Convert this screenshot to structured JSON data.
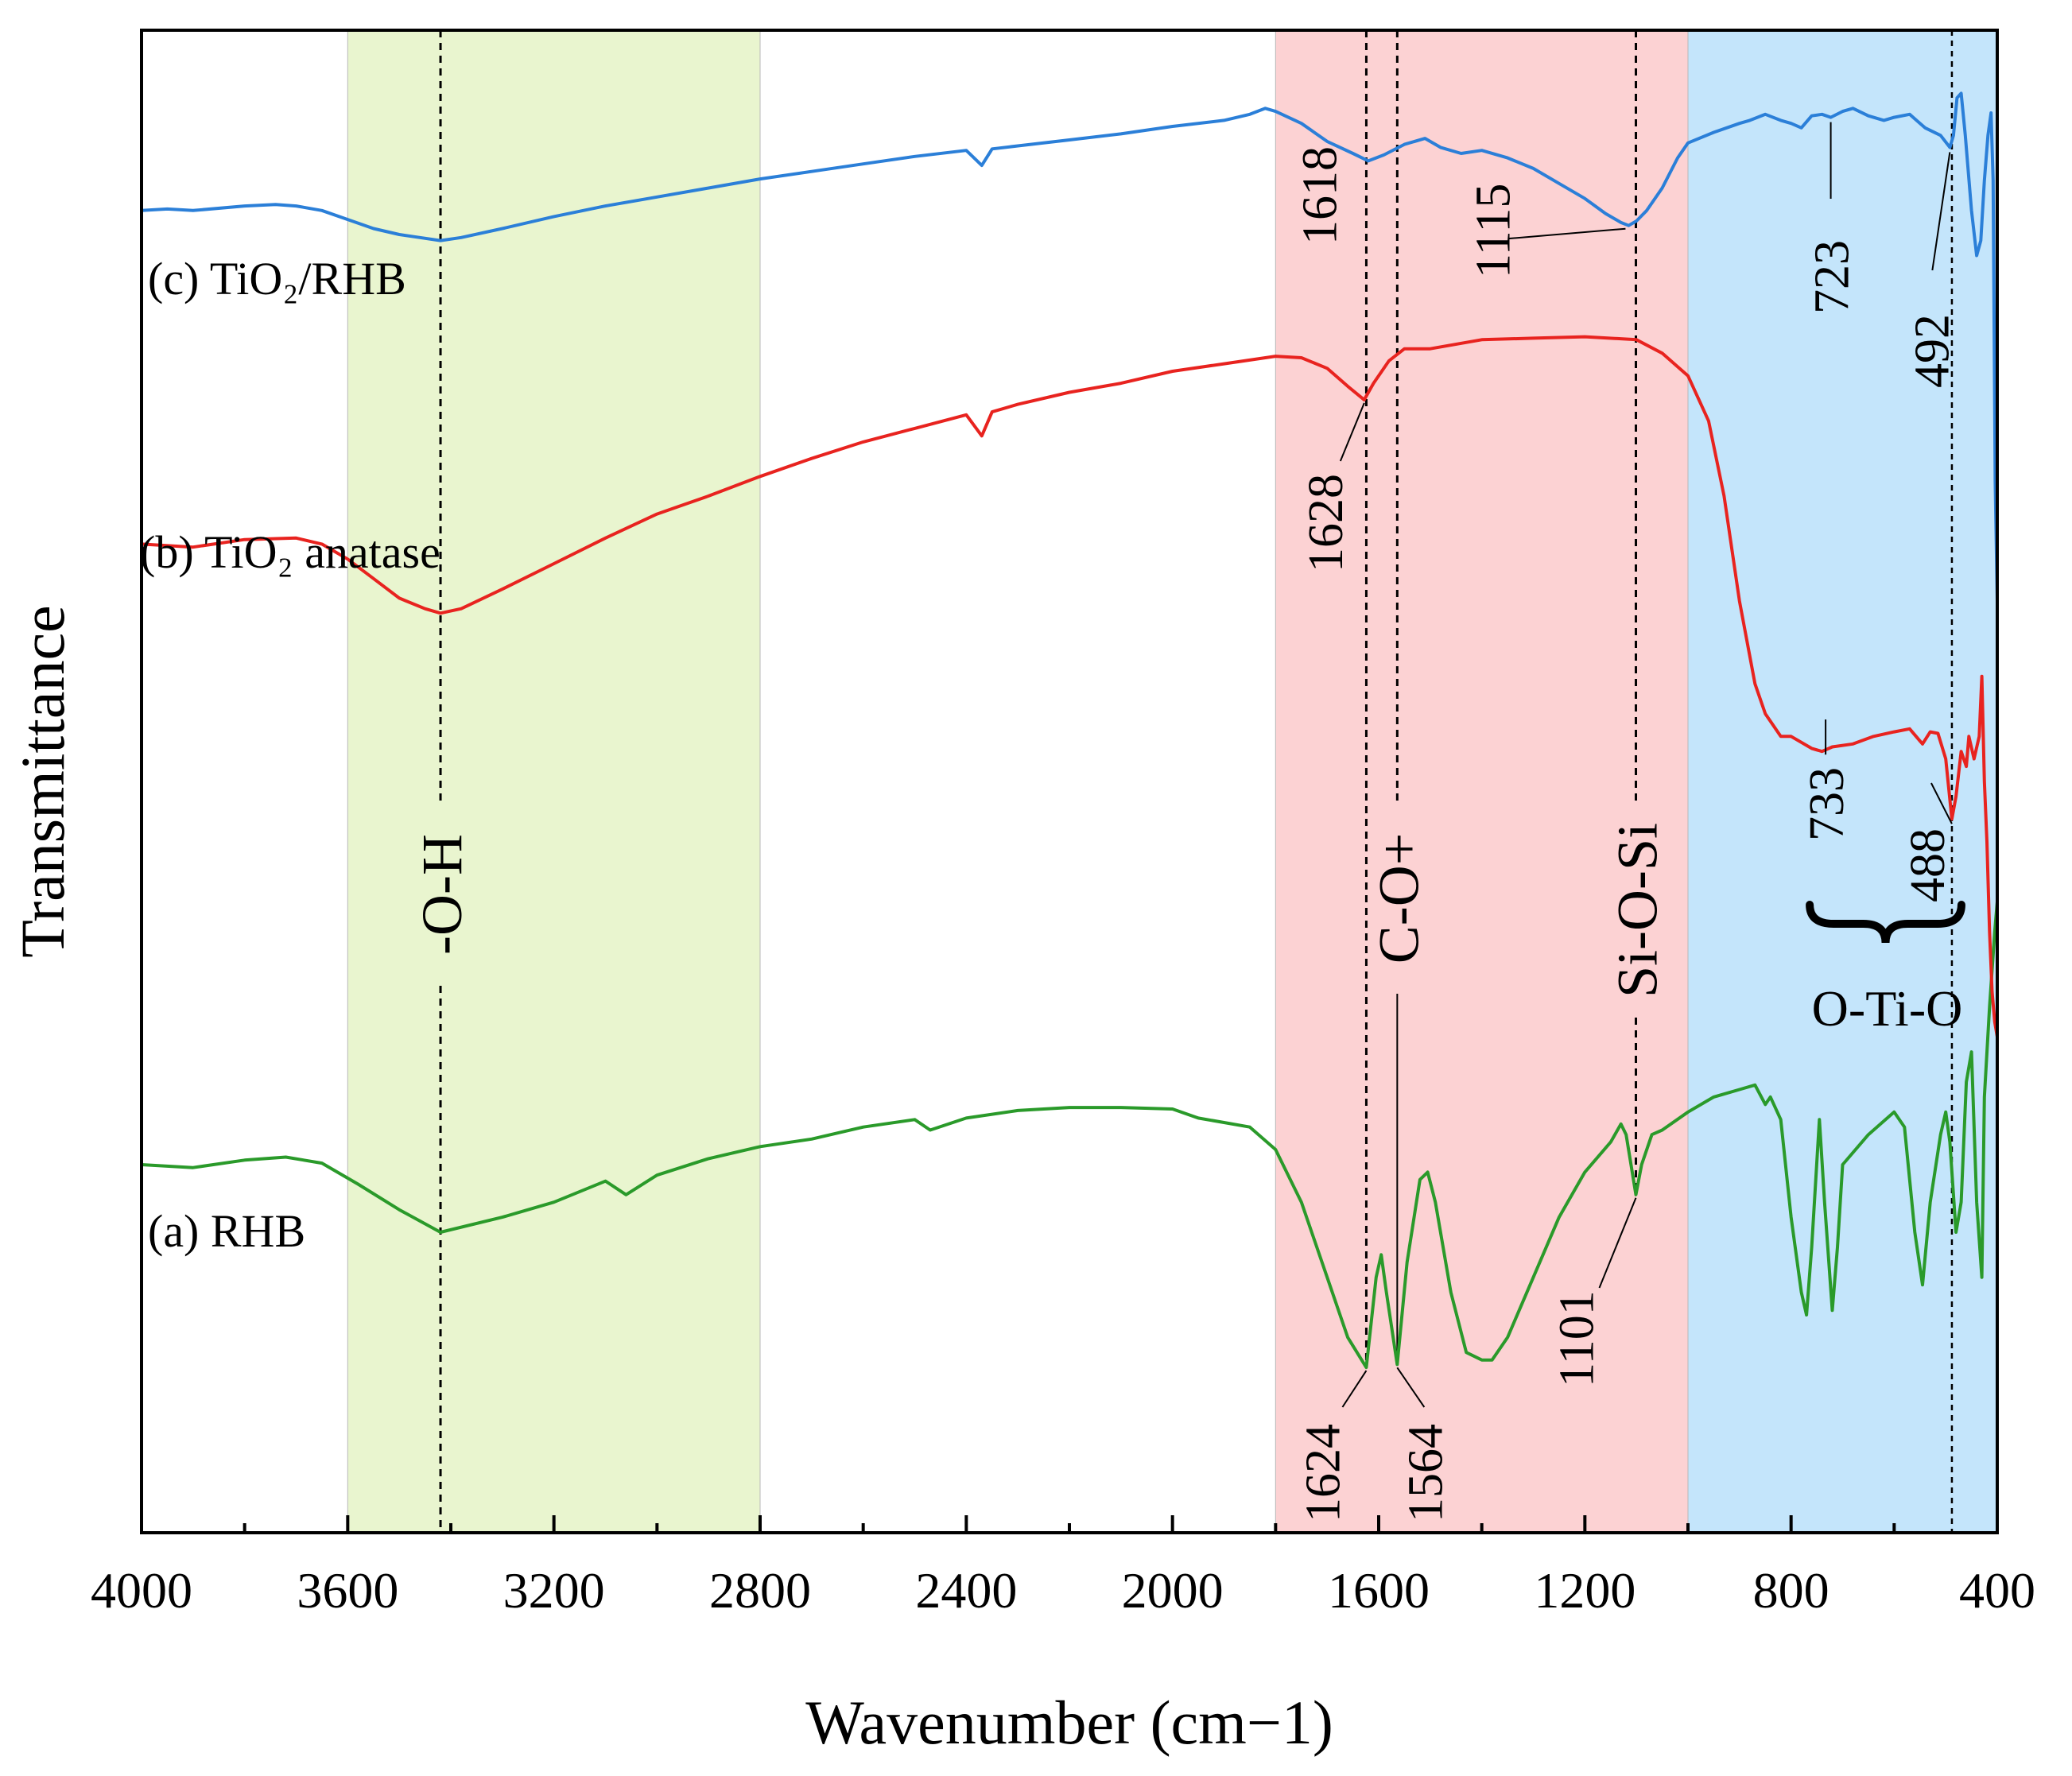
{
  "chart_data": {
    "type": "line",
    "title": "",
    "xlabel": "Wavenumber (cm−1)",
    "ylabel": "Transmittance",
    "xlim": [
      4000,
      400
    ],
    "x_reversed": true,
    "ylim": [
      0,
      100
    ],
    "y_ticks_shown": false,
    "grid": false,
    "x_ticks": [
      4000,
      3600,
      3200,
      2800,
      2400,
      2000,
      1600,
      1200,
      800,
      400
    ],
    "x_tick_labels": [
      "4000",
      "3600",
      "3200",
      "2800",
      "2400",
      "2000",
      "1600",
      "1200",
      "800",
      "400"
    ],
    "bands": [
      {
        "label": "",
        "from": 3600,
        "to": 2800,
        "color": "#e9f5cf"
      },
      {
        "label": "",
        "from": 1800,
        "to": 1000,
        "color": "#fcd2d3"
      },
      {
        "label": "",
        "from": 1000,
        "to": 400,
        "color": "#c4e5fb"
      }
    ],
    "series": [
      {
        "name": "(a) RHB",
        "color": "#2a9a2a",
        "points": [
          [
            4000,
            24.5
          ],
          [
            3900,
            24.3
          ],
          [
            3800,
            24.8
          ],
          [
            3720,
            25.0
          ],
          [
            3650,
            24.6
          ],
          [
            3580,
            23.2
          ],
          [
            3500,
            21.5
          ],
          [
            3420,
            20.0
          ],
          [
            3300,
            21.0
          ],
          [
            3200,
            22.0
          ],
          [
            3100,
            23.4
          ],
          [
            3060,
            22.5
          ],
          [
            3000,
            23.8
          ],
          [
            2900,
            24.9
          ],
          [
            2800,
            25.7
          ],
          [
            2700,
            26.2
          ],
          [
            2600,
            27.0
          ],
          [
            2500,
            27.5
          ],
          [
            2470,
            26.8
          ],
          [
            2400,
            27.6
          ],
          [
            2300,
            28.1
          ],
          [
            2200,
            28.3
          ],
          [
            2100,
            28.3
          ],
          [
            2000,
            28.2
          ],
          [
            1950,
            27.6
          ],
          [
            1900,
            27.3
          ],
          [
            1850,
            27.0
          ],
          [
            1800,
            25.5
          ],
          [
            1750,
            22.0
          ],
          [
            1700,
            17.0
          ],
          [
            1660,
            13.0
          ],
          [
            1624,
            11.0
          ],
          [
            1605,
            17.0
          ],
          [
            1595,
            18.5
          ],
          [
            1585,
            16.0
          ],
          [
            1564,
            11.2
          ],
          [
            1545,
            18.0
          ],
          [
            1520,
            23.5
          ],
          [
            1505,
            24.0
          ],
          [
            1490,
            22.0
          ],
          [
            1460,
            16.0
          ],
          [
            1430,
            12.0
          ],
          [
            1400,
            11.5
          ],
          [
            1380,
            11.5
          ],
          [
            1350,
            13.0
          ],
          [
            1300,
            17.0
          ],
          [
            1250,
            21.0
          ],
          [
            1200,
            24.0
          ],
          [
            1150,
            26.0
          ],
          [
            1130,
            27.2
          ],
          [
            1120,
            26.5
          ],
          [
            1101,
            22.5
          ],
          [
            1090,
            24.5
          ],
          [
            1070,
            26.5
          ],
          [
            1050,
            26.8
          ],
          [
            1000,
            28.0
          ],
          [
            950,
            29.0
          ],
          [
            900,
            29.5
          ],
          [
            870,
            29.8
          ],
          [
            850,
            28.5
          ],
          [
            840,
            29.0
          ],
          [
            820,
            27.5
          ],
          [
            800,
            21.0
          ],
          [
            780,
            16.0
          ],
          [
            770,
            14.5
          ],
          [
            760,
            19.0
          ],
          [
            745,
            27.5
          ],
          [
            735,
            22.0
          ],
          [
            720,
            14.8
          ],
          [
            710,
            19.0
          ],
          [
            700,
            24.5
          ],
          [
            650,
            26.5
          ],
          [
            600,
            28.0
          ],
          [
            580,
            27.0
          ],
          [
            560,
            20.0
          ],
          [
            545,
            16.5
          ],
          [
            530,
            22.0
          ],
          [
            510,
            26.5
          ],
          [
            500,
            28.0
          ],
          [
            492,
            26.0
          ],
          [
            480,
            20.0
          ],
          [
            470,
            22.0
          ],
          [
            460,
            30.0
          ],
          [
            450,
            32.0
          ],
          [
            440,
            22.0
          ],
          [
            430,
            17.0
          ],
          [
            425,
            29.0
          ],
          [
            415,
            35.0
          ],
          [
            405,
            40.0
          ],
          [
            400,
            42.0
          ]
        ]
      },
      {
        "name": "(b) TiO₂ anatase",
        "color": "#e8231f",
        "points": [
          [
            4000,
            65.8
          ],
          [
            3900,
            65.6
          ],
          [
            3800,
            66.1
          ],
          [
            3700,
            66.2
          ],
          [
            3650,
            65.8
          ],
          [
            3600,
            64.8
          ],
          [
            3550,
            63.5
          ],
          [
            3500,
            62.2
          ],
          [
            3450,
            61.5
          ],
          [
            3420,
            61.2
          ],
          [
            3380,
            61.5
          ],
          [
            3300,
            62.8
          ],
          [
            3200,
            64.5
          ],
          [
            3100,
            66.2
          ],
          [
            3000,
            67.8
          ],
          [
            2900,
            69.0
          ],
          [
            2800,
            70.3
          ],
          [
            2700,
            71.5
          ],
          [
            2600,
            72.6
          ],
          [
            2500,
            73.5
          ],
          [
            2400,
            74.4
          ],
          [
            2370,
            73.0
          ],
          [
            2350,
            74.6
          ],
          [
            2300,
            75.1
          ],
          [
            2200,
            75.9
          ],
          [
            2100,
            76.5
          ],
          [
            2000,
            77.3
          ],
          [
            1900,
            77.8
          ],
          [
            1800,
            78.3
          ],
          [
            1750,
            78.2
          ],
          [
            1700,
            77.5
          ],
          [
            1660,
            76.3
          ],
          [
            1628,
            75.4
          ],
          [
            1610,
            76.5
          ],
          [
            1580,
            78.0
          ],
          [
            1550,
            78.8
          ],
          [
            1500,
            78.8
          ],
          [
            1400,
            79.4
          ],
          [
            1300,
            79.5
          ],
          [
            1200,
            79.6
          ],
          [
            1100,
            79.4
          ],
          [
            1050,
            78.5
          ],
          [
            1000,
            77.0
          ],
          [
            960,
            74.0
          ],
          [
            930,
            69.0
          ],
          [
            900,
            62.0
          ],
          [
            870,
            56.5
          ],
          [
            850,
            54.5
          ],
          [
            820,
            53.0
          ],
          [
            800,
            53.0
          ],
          [
            760,
            52.2
          ],
          [
            740,
            52.0
          ],
          [
            720,
            52.3
          ],
          [
            680,
            52.5
          ],
          [
            640,
            53.0
          ],
          [
            600,
            53.3
          ],
          [
            570,
            53.5
          ],
          [
            545,
            52.5
          ],
          [
            530,
            53.3
          ],
          [
            515,
            53.2
          ],
          [
            500,
            51.5
          ],
          [
            488,
            47.5
          ],
          [
            480,
            49.0
          ],
          [
            470,
            52.0
          ],
          [
            460,
            51.0
          ],
          [
            455,
            53.0
          ],
          [
            445,
            51.5
          ],
          [
            435,
            53.0
          ],
          [
            430,
            57.0
          ],
          [
            425,
            50.0
          ],
          [
            420,
            46.0
          ],
          [
            415,
            40.0
          ],
          [
            410,
            36.0
          ],
          [
            405,
            34.0
          ],
          [
            400,
            33.0
          ]
        ]
      },
      {
        "name": "(c) TiO₂/RHB",
        "color": "#2b7fd8",
        "points": [
          [
            4000,
            88.0
          ],
          [
            3950,
            88.1
          ],
          [
            3900,
            88.0
          ],
          [
            3800,
            88.3
          ],
          [
            3740,
            88.4
          ],
          [
            3700,
            88.3
          ],
          [
            3650,
            88.0
          ],
          [
            3600,
            87.4
          ],
          [
            3550,
            86.8
          ],
          [
            3500,
            86.4
          ],
          [
            3460,
            86.2
          ],
          [
            3420,
            86.0
          ],
          [
            3380,
            86.2
          ],
          [
            3300,
            86.8
          ],
          [
            3200,
            87.6
          ],
          [
            3100,
            88.3
          ],
          [
            3000,
            88.9
          ],
          [
            2900,
            89.5
          ],
          [
            2800,
            90.1
          ],
          [
            2700,
            90.6
          ],
          [
            2600,
            91.1
          ],
          [
            2500,
            91.6
          ],
          [
            2400,
            92.0
          ],
          [
            2370,
            91.0
          ],
          [
            2350,
            92.1
          ],
          [
            2300,
            92.3
          ],
          [
            2200,
            92.7
          ],
          [
            2100,
            93.1
          ],
          [
            2000,
            93.6
          ],
          [
            1900,
            94.0
          ],
          [
            1850,
            94.4
          ],
          [
            1820,
            94.8
          ],
          [
            1800,
            94.6
          ],
          [
            1750,
            93.8
          ],
          [
            1700,
            92.6
          ],
          [
            1650,
            91.8
          ],
          [
            1620,
            91.3
          ],
          [
            1590,
            91.7
          ],
          [
            1550,
            92.4
          ],
          [
            1510,
            92.8
          ],
          [
            1480,
            92.2
          ],
          [
            1440,
            91.8
          ],
          [
            1400,
            92.0
          ],
          [
            1350,
            91.5
          ],
          [
            1300,
            90.8
          ],
          [
            1250,
            89.8
          ],
          [
            1200,
            88.8
          ],
          [
            1160,
            87.8
          ],
          [
            1130,
            87.2
          ],
          [
            1115,
            87.0
          ],
          [
            1100,
            87.3
          ],
          [
            1080,
            88.0
          ],
          [
            1050,
            89.5
          ],
          [
            1020,
            91.5
          ],
          [
            1000,
            92.5
          ],
          [
            950,
            93.2
          ],
          [
            900,
            93.8
          ],
          [
            880,
            94.0
          ],
          [
            850,
            94.4
          ],
          [
            820,
            94.0
          ],
          [
            800,
            93.8
          ],
          [
            780,
            93.5
          ],
          [
            760,
            94.3
          ],
          [
            740,
            94.4
          ],
          [
            723,
            94.2
          ],
          [
            700,
            94.6
          ],
          [
            680,
            94.8
          ],
          [
            650,
            94.3
          ],
          [
            620,
            94.0
          ],
          [
            600,
            94.2
          ],
          [
            570,
            94.4
          ],
          [
            540,
            93.5
          ],
          [
            510,
            93.0
          ],
          [
            492,
            92.2
          ],
          [
            485,
            93.0
          ],
          [
            478,
            95.5
          ],
          [
            470,
            95.8
          ],
          [
            462,
            93.0
          ],
          [
            450,
            88.0
          ],
          [
            440,
            85.0
          ],
          [
            432,
            86.0
          ],
          [
            425,
            90.0
          ],
          [
            418,
            93.0
          ],
          [
            412,
            94.5
          ],
          [
            408,
            90.0
          ],
          [
            404,
            70.0
          ],
          [
            400,
            62.0
          ]
        ]
      }
    ],
    "series_labels": [
      "(c) TiO₂/RHB",
      "(b) TiO₂ anatase",
      "(a) RHB"
    ],
    "vlines": [
      {
        "x": 3420,
        "label": "-O-H"
      },
      {
        "x": 1624,
        "label": ""
      },
      {
        "x": 1564,
        "label": "C-O+"
      },
      {
        "x": 1101,
        "label": "Si-O-Si"
      },
      {
        "x": 488,
        "label": ""
      }
    ],
    "annotations": [
      {
        "text": "1618",
        "x": 1618
      },
      {
        "text": "1628",
        "x": 1628
      },
      {
        "text": "1624",
        "x": 1624
      },
      {
        "text": "1564",
        "x": 1564
      },
      {
        "text": "1115",
        "x": 1115
      },
      {
        "text": "1101",
        "x": 1101
      },
      {
        "text": "723",
        "x": 723
      },
      {
        "text": "733",
        "x": 733
      },
      {
        "text": "492",
        "x": 492
      },
      {
        "text": "488",
        "x": 488
      }
    ],
    "group_label": {
      "text": "O-Ti-O",
      "from": 733,
      "to": 488
    }
  }
}
